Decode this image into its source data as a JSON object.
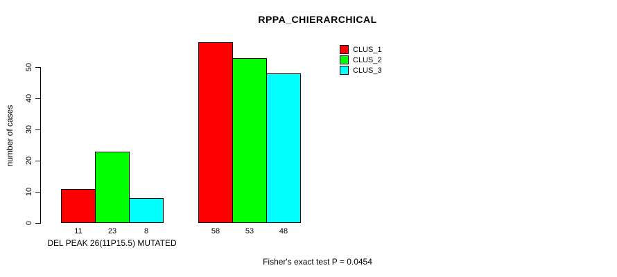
{
  "chart_data": {
    "type": "bar",
    "title": "RPPA_CHIERARCHICAL",
    "ylabel": "number of cases",
    "ylim": [
      0,
      50
    ],
    "yticks": [
      0,
      10,
      20,
      30,
      40,
      50
    ],
    "grid": false,
    "legend_position": "top-right",
    "series": [
      {
        "name": "CLUS_1",
        "color": "#FF0000"
      },
      {
        "name": "CLUS_2",
        "color": "#00FF00"
      },
      {
        "name": "CLUS_3",
        "color": "#00FFFF"
      }
    ],
    "groups": [
      {
        "label": "DEL PEAK 26(11P15.5) MUTATED",
        "values": [
          11,
          23,
          8
        ]
      },
      {
        "label": "",
        "values": [
          58,
          53,
          48
        ]
      }
    ],
    "annotation": "Fisher's exact test P = 0.0454"
  }
}
